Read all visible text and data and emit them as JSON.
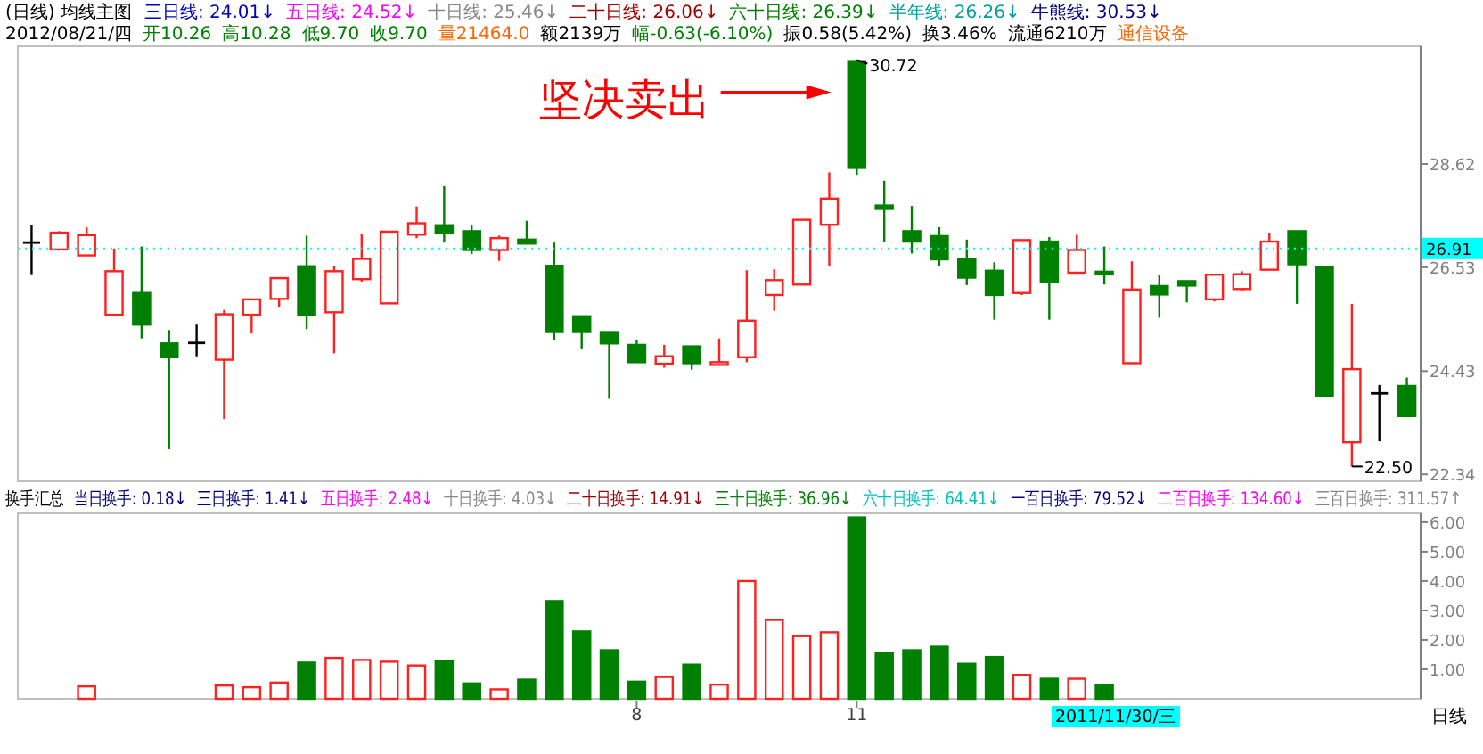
{
  "chart_data": [
    {
      "type": "candlestick",
      "title": "(日线) 均线主图",
      "categories": [
        null,
        null,
        null,
        null,
        null,
        null,
        null,
        null,
        null,
        null,
        null,
        null,
        null,
        null,
        null,
        null,
        null,
        null,
        null,
        null,
        null,
        null,
        null,
        null,
        null,
        null,
        null,
        null,
        null,
        null,
        null,
        null,
        null,
        null,
        null,
        null,
        null,
        null,
        null,
        null,
        null,
        null,
        null,
        null,
        null,
        null,
        null,
        null,
        null,
        null,
        null
      ],
      "ohlc": [
        [
          27.03,
          27.38,
          26.39,
          27.03
        ],
        [
          26.89,
          27.26,
          26.89,
          27.23
        ],
        [
          26.77,
          27.34,
          26.77,
          27.18
        ],
        [
          25.57,
          26.91,
          25.57,
          26.45
        ],
        [
          26.01,
          26.95,
          25.09,
          25.37
        ],
        [
          24.99,
          25.26,
          22.85,
          24.71
        ],
        [
          25.0,
          25.37,
          24.73,
          25.0
        ],
        [
          24.66,
          25.67,
          23.46,
          25.58
        ],
        [
          25.57,
          25.88,
          25.19,
          25.88
        ],
        [
          25.89,
          26.31,
          25.72,
          26.31
        ],
        [
          26.55,
          27.17,
          25.28,
          25.57
        ],
        [
          25.62,
          26.56,
          24.79,
          26.45
        ],
        [
          26.29,
          27.2,
          26.24,
          26.7
        ],
        [
          25.8,
          27.25,
          25.8,
          27.25
        ],
        [
          27.19,
          27.76,
          27.12,
          27.42
        ],
        [
          27.38,
          28.17,
          27.03,
          27.23
        ],
        [
          27.26,
          27.38,
          26.8,
          26.88
        ],
        [
          26.88,
          27.17,
          26.66,
          27.12
        ],
        [
          27.09,
          27.47,
          27.01,
          27.01
        ],
        [
          26.56,
          27.03,
          25.05,
          25.22
        ],
        [
          25.54,
          25.54,
          24.87,
          25.22
        ],
        [
          25.22,
          25.22,
          23.87,
          24.99
        ],
        [
          24.96,
          25.05,
          24.61,
          24.61
        ],
        [
          24.58,
          24.96,
          24.5,
          24.73
        ],
        [
          24.93,
          24.93,
          24.46,
          24.59
        ],
        [
          24.58,
          25.09,
          24.58,
          24.61
        ],
        [
          24.71,
          26.47,
          24.61,
          25.45
        ],
        [
          25.97,
          26.49,
          25.65,
          26.27
        ],
        [
          26.18,
          27.49,
          26.18,
          27.49
        ],
        [
          27.39,
          28.45,
          26.56,
          27.92
        ],
        [
          30.7,
          30.72,
          28.4,
          28.54
        ],
        [
          27.78,
          28.28,
          27.05,
          27.71
        ],
        [
          27.26,
          27.77,
          26.81,
          27.05
        ],
        [
          27.16,
          27.34,
          26.55,
          26.69
        ],
        [
          26.7,
          27.09,
          26.17,
          26.32
        ],
        [
          26.46,
          26.63,
          25.47,
          25.97
        ],
        [
          26.01,
          27.08,
          25.97,
          27.08
        ],
        [
          27.05,
          27.14,
          25.47,
          26.24
        ],
        [
          26.42,
          27.19,
          26.42,
          26.88
        ],
        [
          26.44,
          26.95,
          26.18,
          26.39
        ],
        [
          24.59,
          26.65,
          24.59,
          26.08
        ],
        [
          26.15,
          26.37,
          25.51,
          25.98
        ],
        [
          26.25,
          26.25,
          25.82,
          26.16
        ],
        [
          25.88,
          26.38,
          25.84,
          26.38
        ],
        [
          26.09,
          26.45,
          26.04,
          26.39
        ],
        [
          26.48,
          27.23,
          26.48,
          27.05
        ],
        [
          27.26,
          27.26,
          25.79,
          26.59
        ],
        [
          26.54,
          26.54,
          23.93,
          23.93
        ],
        [
          22.99,
          25.79,
          22.5,
          24.47
        ],
        [
          23.98,
          24.15,
          23.01,
          23.98
        ],
        [
          24.13,
          24.3,
          23.52,
          23.52
        ]
      ],
      "ylim": [
        22.2,
        31.0
      ],
      "yticks": [
        22.34,
        24.43,
        26.53,
        28.62
      ],
      "ref_lines": [
        {
          "axis": "y",
          "value": 26.91,
          "label": "26.91",
          "color": "#00ffff"
        }
      ],
      "annotations": [
        "三日线: 24.01↓",
        "五日线: 24.52↓",
        "十日线: 25.46↓",
        "二十日线: 26.06↓",
        "六十日线: 26.39↓",
        "半年线: 26.26↓",
        "牛熊线: 30.53↓",
        "2012/08/21/四",
        "开10.26",
        "高10.28",
        "低9.70",
        "收9.70",
        "量21464.0",
        "额2139万",
        "幅-0.63(-6.10%)",
        "振0.58(5.42%)",
        "换3.46%",
        "流通6210万",
        "通信设备",
        "坚决卖出",
        "30.72",
        "22.50"
      ]
    },
    {
      "type": "bar",
      "categories": [
        null,
        null,
        null,
        null,
        null,
        null,
        null,
        null,
        null,
        null,
        null,
        null,
        null,
        null,
        null,
        null,
        null,
        null,
        null,
        null,
        null,
        null,
        "8",
        null,
        null,
        null,
        null,
        null,
        null,
        null,
        "11",
        null,
        null,
        null,
        null,
        null,
        null,
        null,
        null,
        null,
        null,
        null,
        null,
        null,
        null,
        null,
        null,
        null,
        null,
        null,
        null
      ],
      "series": [
        {
          "color": "#ff2020",
          "values": [
            null,
            null,
            0.42,
            null,
            null,
            null,
            null,
            0.45,
            0.39,
            0.55,
            null,
            1.39,
            1.32,
            1.26,
            1.13,
            null,
            null,
            0.32,
            null,
            null,
            null,
            null,
            null,
            0.74,
            null,
            0.48,
            4.0,
            2.68,
            2.13,
            2.26,
            null,
            null,
            null,
            null,
            null,
            null,
            0.81,
            null,
            0.68,
            null,
            null,
            null,
            null,
            null,
            null,
            null,
            null,
            null,
            null,
            null,
            null
          ]
        },
        {
          "color": "#008000",
          "values": [
            null,
            null,
            null,
            null,
            null,
            null,
            null,
            null,
            null,
            null,
            1.23,
            null,
            null,
            null,
            null,
            1.29,
            0.52,
            null,
            0.65,
            3.32,
            2.29,
            1.65,
            0.58,
            null,
            1.16,
            null,
            null,
            null,
            null,
            null,
            6.16,
            1.55,
            1.65,
            1.77,
            1.19,
            1.42,
            null,
            0.68,
            null,
            0.48,
            null,
            null,
            null,
            null,
            null,
            null,
            null,
            null,
            null,
            null,
            null
          ]
        }
      ],
      "ylim": [
        0,
        6.3
      ],
      "yticks": [
        {
          "value": 1,
          "label": "1.00"
        },
        {
          "value": 2,
          "label": "2.00"
        },
        {
          "value": 3,
          "label": "3.00"
        },
        {
          "value": 4,
          "label": "4.00"
        },
        {
          "value": 5,
          "label": "5.00"
        },
        {
          "value": 6,
          "label": "6.00"
        }
      ],
      "annotations": [
        "换手汇总",
        "当日换手: 0.18↓",
        "三日换手: 1.41↓",
        "五日换手: 2.48↓",
        "十日换手: 4.03↓",
        "二十日换手: 14.91↓",
        "三十日换手: 36.96↓",
        "六十日换手: 64.41↓",
        "一百日换手: 79.52↓",
        "二百日换手: 134.60↓",
        "三百日换手: 311.57↑",
        "2011/11/30/三",
        "日线"
      ]
    }
  ]
}
